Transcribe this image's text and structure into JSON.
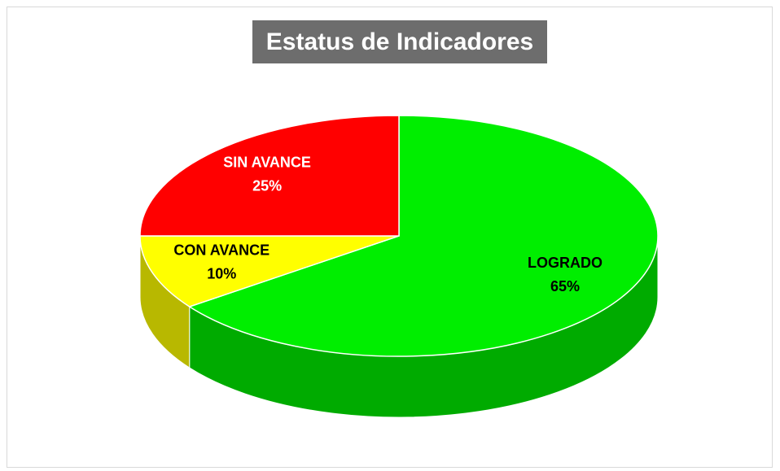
{
  "chart_data": {
    "type": "pie3d",
    "title": "Estatus de Indicadores",
    "categories": [
      "LOGRADO",
      "CON AVANCE",
      "SIN AVANCE"
    ],
    "values": [
      65,
      10,
      25
    ],
    "value_labels": [
      "65%",
      "10%",
      "25%"
    ],
    "colors": [
      "#00ee00",
      "#ffff00",
      "#ff0000"
    ]
  }
}
